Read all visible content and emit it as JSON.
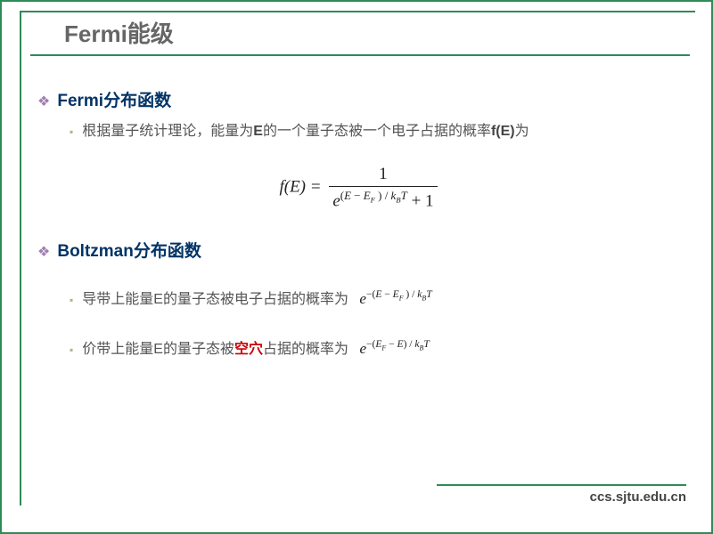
{
  "colors": {
    "border": "#2e8b57",
    "title": "#666666",
    "section": "#003366",
    "body": "#555555",
    "highlight": "#cc0000",
    "diamond": "#a080b0",
    "square": "#a8b88a",
    "background": "#ffffff"
  },
  "title": "Fermi能级",
  "section1": {
    "heading": "Fermi分布函数",
    "bullet": "根据量子统计理论，能量为",
    "bullet_b1": "E",
    "bullet_mid": "的一个量子态被一个电子占据的概率",
    "bullet_b2": "f(E)",
    "bullet_end": "为"
  },
  "formula": {
    "lhs": "f(E) =",
    "numerator": "1",
    "den_exp": "(E − E",
    "den_exp_sub": "F",
    "den_exp2": " ) / k",
    "den_exp_sub2": "B",
    "den_exp3": "T",
    "den_tail": " + 1"
  },
  "section2": {
    "heading": "Boltzman分布函数",
    "item1_pre": "导带上能量E的量子态被电子占据的概率为",
    "item1_formula": "e",
    "item1_exp": "−(E − E",
    "item1_exp_sub": "F",
    "item1_exp2": " ) / k",
    "item1_exp_sub2": "B",
    "item1_exp3": "T",
    "item2_pre": "价带上能量E的量子态被",
    "item2_hole": "空穴",
    "item2_post": "占据的概率为",
    "item2_formula": "e",
    "item2_exp": "−(E",
    "item2_exp_sub": "F",
    "item2_exp2": " − E) / k",
    "item2_exp_sub2": "B",
    "item2_exp3": "T"
  },
  "footer": "ccs.sjtu.edu.cn"
}
